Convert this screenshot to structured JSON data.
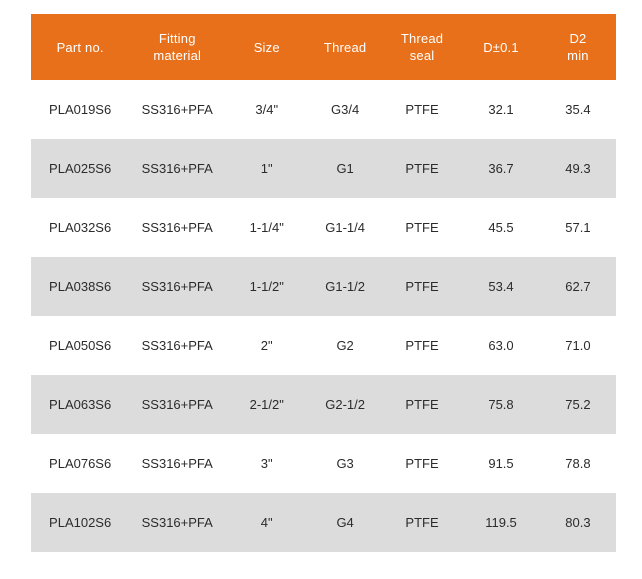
{
  "colors": {
    "header_bg": "#E8701A",
    "header_text": "#FFFFFF",
    "row_white_bg": "#FFFFFF",
    "row_gray_bg": "#DCDCDC",
    "cell_text": "#2B2B2B"
  },
  "table": {
    "columns": [
      {
        "key": "part-no",
        "label": "Part no.",
        "lines": [
          "Part no."
        ]
      },
      {
        "key": "fitting-material",
        "label": "Fitting material",
        "lines": [
          "Fitting",
          "material"
        ]
      },
      {
        "key": "size",
        "label": "Size",
        "lines": [
          "Size"
        ]
      },
      {
        "key": "thread",
        "label": "Thread",
        "lines": [
          "Thread"
        ]
      },
      {
        "key": "thread-seal",
        "label": "Thread seal",
        "lines": [
          "Thread",
          "seal"
        ]
      },
      {
        "key": "d-tolerance",
        "label": "D±0.1",
        "lines": [
          "D±0.1"
        ]
      },
      {
        "key": "d2-min",
        "label": "D2 min",
        "lines": [
          "D2",
          "min"
        ]
      }
    ],
    "rows": [
      [
        "PLA019S6",
        "SS316+PFA",
        "3/4\"",
        "G3/4",
        "PTFE",
        "32.1",
        "35.4"
      ],
      [
        "PLA025S6",
        "SS316+PFA",
        "1\"",
        "G1",
        "PTFE",
        "36.7",
        "49.3"
      ],
      [
        "PLA032S6",
        "SS316+PFA",
        "1-1/4\"",
        "G1-1/4",
        "PTFE",
        "45.5",
        "57.1"
      ],
      [
        "PLA038S6",
        "SS316+PFA",
        "1-1/2\"",
        "G1-1/2",
        "PTFE",
        "53.4",
        "62.7"
      ],
      [
        "PLA050S6",
        "SS316+PFA",
        "2\"",
        "G2",
        "PTFE",
        "63.0",
        "71.0"
      ],
      [
        "PLA063S6",
        "SS316+PFA",
        "2-1/2\"",
        "G2-1/2",
        "PTFE",
        "75.8",
        "75.2"
      ],
      [
        "PLA076S6",
        "SS316+PFA",
        "3\"",
        "G3",
        "PTFE",
        "91.5",
        "78.8"
      ],
      [
        "PLA102S6",
        "SS316+PFA",
        "4\"",
        "G4",
        "PTFE",
        "119.5",
        "80.3"
      ]
    ]
  }
}
